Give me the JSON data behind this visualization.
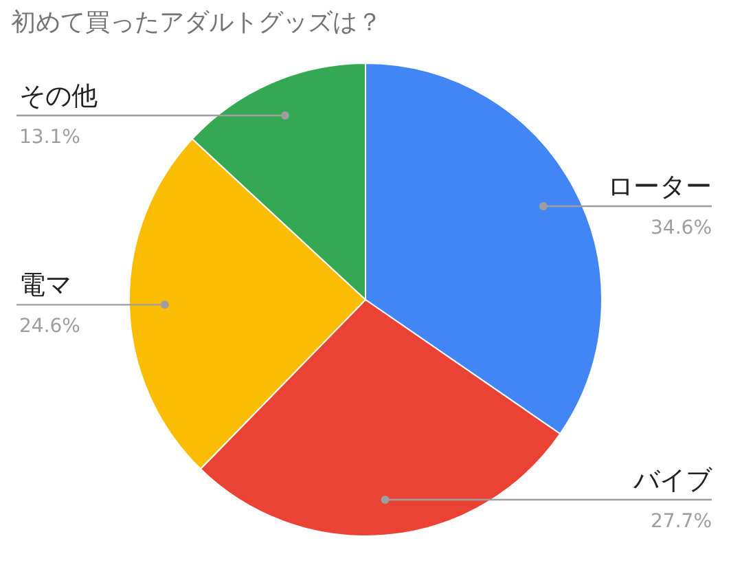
{
  "chart_data": {
    "type": "pie",
    "title": "初めて買ったアダルトグッズは？",
    "categories": [
      "ローター",
      "バイブ",
      "電マ",
      "その他"
    ],
    "values": [
      34.6,
      27.7,
      24.6,
      13.1
    ],
    "value_labels": [
      "34.6%",
      "27.7%",
      "24.6%",
      "13.1%"
    ],
    "colors": [
      "#4285f4",
      "#ea4335",
      "#fbbc04",
      "#34a853"
    ]
  }
}
